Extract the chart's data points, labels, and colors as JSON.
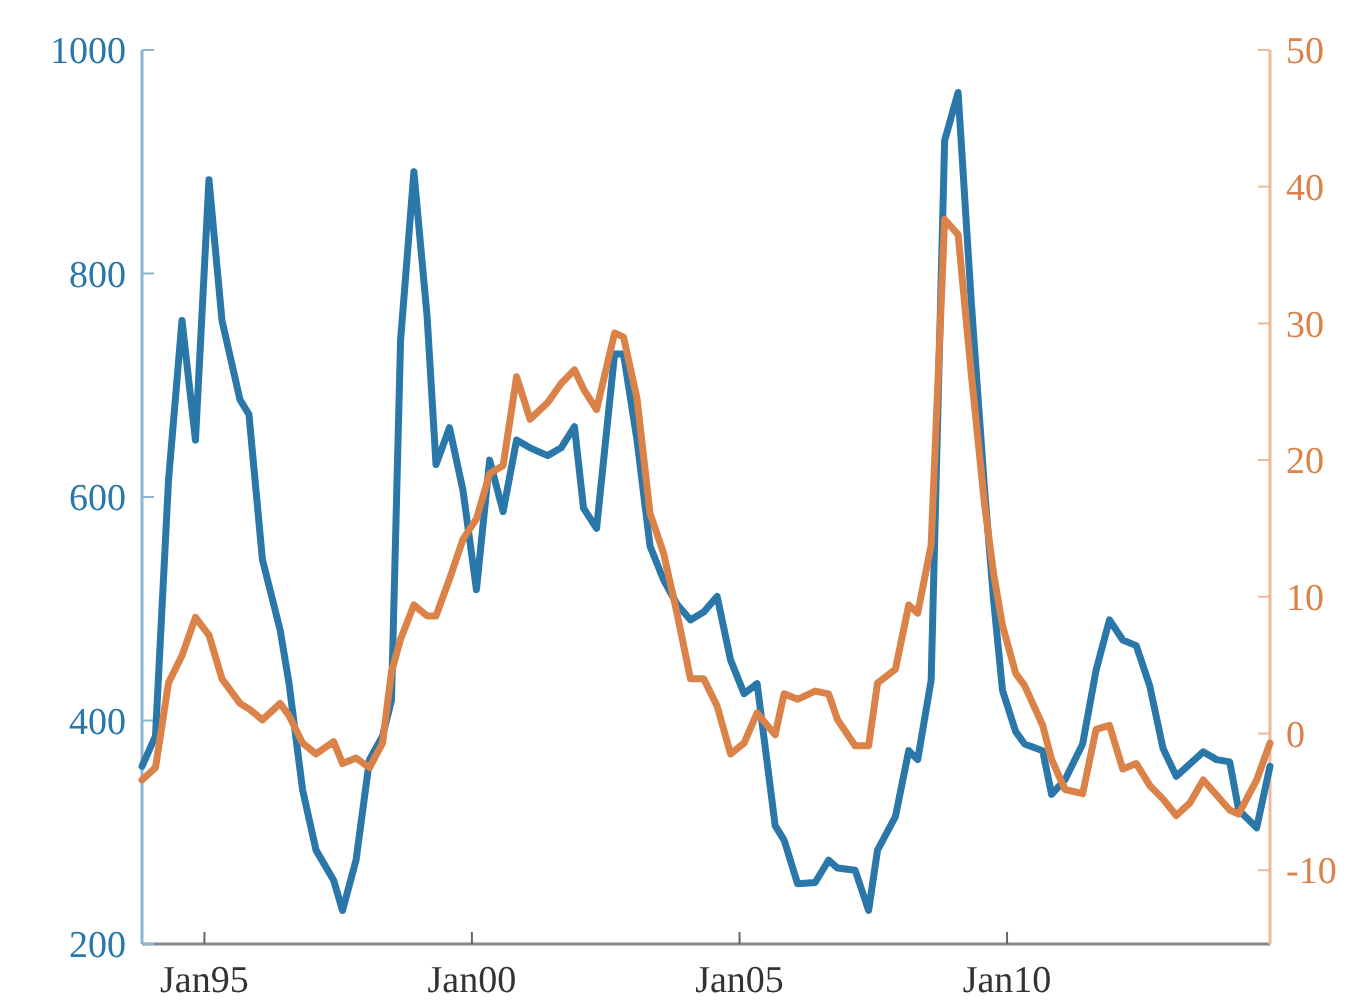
{
  "chart_data": {
    "type": "line",
    "xlim": [
      "1993-11",
      "2014-12"
    ],
    "xticks": [
      {
        "value": "1995-01",
        "label": "Jan95"
      },
      {
        "value": "2000-01",
        "label": "Jan00"
      },
      {
        "value": "2005-01",
        "label": "Jan05"
      },
      {
        "value": "2010-01",
        "label": "Jan10"
      }
    ],
    "ylim": [
      200,
      1000
    ],
    "yticks": [
      200,
      400,
      600,
      800,
      1000
    ],
    "y2lim": [
      -15.4,
      50
    ],
    "y2ticks": [
      -10,
      0,
      10,
      20,
      30,
      40,
      50
    ],
    "grid": false,
    "line_style": "solid",
    "x": [
      "1993-11",
      "1994-02",
      "1994-05",
      "1994-08",
      "1994-11",
      "1995-02",
      "1995-05",
      "1995-09",
      "1995-11",
      "1996-02",
      "1996-06",
      "1996-08",
      "1996-11",
      "1997-02",
      "1997-06",
      "1997-08",
      "1997-11",
      "1998-02",
      "1998-05",
      "1998-07",
      "1998-09",
      "1998-12",
      "1999-03",
      "1999-05",
      "1999-08",
      "1999-11",
      "2000-02",
      "2000-05",
      "2000-08",
      "2000-11",
      "2001-02",
      "2001-06",
      "2001-09",
      "2001-12",
      "2002-02",
      "2002-05",
      "2002-09",
      "2002-11",
      "2003-02",
      "2003-05",
      "2003-08",
      "2003-11",
      "2004-02",
      "2004-05",
      "2004-08",
      "2004-11",
      "2005-02",
      "2005-05",
      "2005-09",
      "2005-11",
      "2006-02",
      "2006-06",
      "2006-09",
      "2006-11",
      "2007-03",
      "2007-06",
      "2007-08",
      "2007-12",
      "2008-03",
      "2008-05",
      "2008-08",
      "2008-11",
      "2009-02",
      "2009-05",
      "2009-08",
      "2009-10",
      "2009-12",
      "2010-03",
      "2010-05",
      "2010-09",
      "2010-11",
      "2011-02",
      "2011-06",
      "2011-09",
      "2011-12",
      "2012-03",
      "2012-06",
      "2012-09",
      "2012-12",
      "2013-03",
      "2013-06",
      "2013-09",
      "2013-12",
      "2014-03",
      "2014-05",
      "2014-09",
      "2014-12"
    ],
    "series": [
      {
        "color": "#2a77aa",
        "axis": "y",
        "values": [
          359,
          386,
          615,
          758,
          651,
          884,
          758,
          687,
          674,
          544,
          481,
          433,
          338,
          284,
          257,
          230,
          275,
          365,
          386,
          418,
          740,
          891,
          762,
          629,
          662,
          606,
          517,
          633,
          587,
          651,
          644,
          637,
          644,
          663,
          590,
          572,
          728,
          728,
          651,
          556,
          526,
          504,
          490,
          497,
          511,
          454,
          424,
          433,
          306,
          293,
          254,
          255,
          275,
          268,
          266,
          230,
          284,
          314,
          373,
          365,
          436,
          919,
          962,
          776,
          606,
          508,
          427,
          390,
          379,
          373,
          334,
          347,
          379,
          445,
          490,
          472,
          467,
          431,
          375,
          350,
          361,
          372,
          365,
          363,
          320,
          304,
          359
        ]
      },
      {
        "color": "#da8248",
        "axis": "y2",
        "values": [
          -3.4,
          -2.5,
          3.7,
          5.7,
          8.5,
          7.2,
          4.0,
          2.2,
          1.8,
          1.0,
          2.2,
          1.3,
          -0.7,
          -1.5,
          -0.6,
          -2.2,
          -1.8,
          -2.5,
          -0.7,
          4.5,
          6.9,
          9.4,
          8.6,
          8.6,
          11.3,
          14.2,
          15.7,
          19.0,
          19.6,
          26.1,
          23.0,
          24.2,
          25.6,
          26.6,
          25.2,
          23.7,
          29.3,
          29.0,
          24.5,
          16.1,
          13.2,
          8.8,
          4.0,
          4.0,
          2.0,
          -1.5,
          -0.7,
          1.5,
          -0.1,
          2.9,
          2.5,
          3.1,
          2.9,
          1.0,
          -0.9,
          -0.9,
          3.7,
          4.7,
          9.4,
          8.8,
          13.8,
          37.6,
          36.5,
          26.4,
          16.7,
          11.7,
          7.9,
          4.4,
          3.5,
          0.6,
          -1.9,
          -4.1,
          -4.4,
          0.3,
          0.6,
          -2.6,
          -2.2,
          -3.8,
          -4.8,
          -6.0,
          -5.1,
          -3.4,
          -4.5,
          -5.6,
          -5.9,
          -3.4,
          -0.7
        ]
      }
    ]
  }
}
